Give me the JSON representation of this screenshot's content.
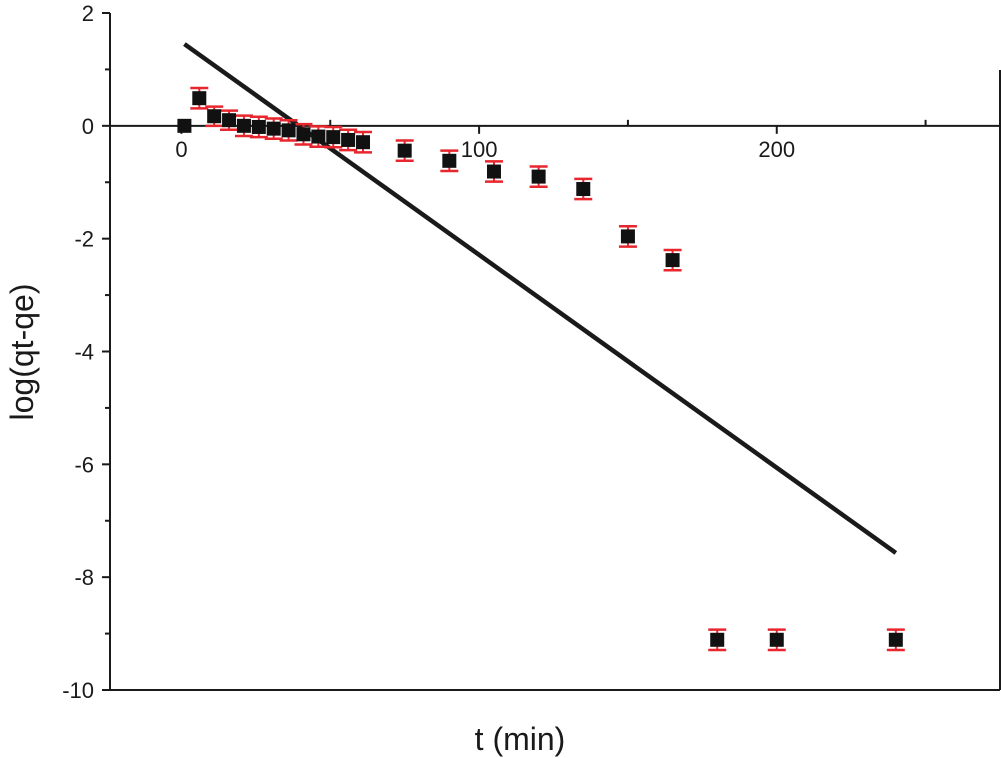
{
  "chart_data": {
    "type": "scatter",
    "title": "",
    "xlabel": "t (min)",
    "ylabel": "log(qt-qe)",
    "xlim": [
      -24,
      275
    ],
    "ylim": [
      -10,
      2
    ],
    "x_ticks": [
      0,
      100,
      200
    ],
    "x_minor_ticks": [
      50,
      150,
      250
    ],
    "y_ticks": [
      2,
      0,
      -2,
      -4,
      -6,
      -8,
      -10
    ],
    "y_tick_labels": [
      "2",
      "0",
      "-2",
      "-4",
      "-6",
      "-8",
      "-10"
    ],
    "grid": false,
    "legend": "none",
    "marker_color": "#111111",
    "errorbar_color": "#e8262d",
    "fit_line_color": "#1a1a1a",
    "series": [
      {
        "marker": "square",
        "points": [
          {
            "x": 1,
            "y": 0.0,
            "err": 0.0
          },
          {
            "x": 6,
            "y": 0.49,
            "err": 0.18
          },
          {
            "x": 11,
            "y": 0.17,
            "err": 0.17
          },
          {
            "x": 16,
            "y": 0.1,
            "err": 0.17
          },
          {
            "x": 21,
            "y": 0.0,
            "err": 0.18
          },
          {
            "x": 26,
            "y": -0.02,
            "err": 0.18
          },
          {
            "x": 31,
            "y": -0.05,
            "err": 0.18
          },
          {
            "x": 36,
            "y": -0.08,
            "err": 0.18
          },
          {
            "x": 41,
            "y": -0.15,
            "err": 0.18
          },
          {
            "x": 46,
            "y": -0.19,
            "err": 0.18
          },
          {
            "x": 51,
            "y": -0.2,
            "err": 0.18
          },
          {
            "x": 56,
            "y": -0.25,
            "err": 0.18
          },
          {
            "x": 61,
            "y": -0.29,
            "err": 0.18
          },
          {
            "x": 75,
            "y": -0.44,
            "err": 0.18
          },
          {
            "x": 90,
            "y": -0.62,
            "err": 0.18
          },
          {
            "x": 105,
            "y": -0.81,
            "err": 0.18
          },
          {
            "x": 120,
            "y": -0.9,
            "err": 0.18
          },
          {
            "x": 135,
            "y": -1.12,
            "err": 0.18
          },
          {
            "x": 150,
            "y": -1.96,
            "err": 0.18
          },
          {
            "x": 165,
            "y": -2.38,
            "err": 0.18
          },
          {
            "x": 180,
            "y": -9.11,
            "err": 0.18
          },
          {
            "x": 200,
            "y": -9.11,
            "err": 0.18
          },
          {
            "x": 240,
            "y": -9.11,
            "err": 0.18
          }
        ]
      }
    ],
    "fit_line": {
      "x": [
        1,
        240
      ],
      "y": [
        1.45,
        -7.57
      ]
    }
  }
}
